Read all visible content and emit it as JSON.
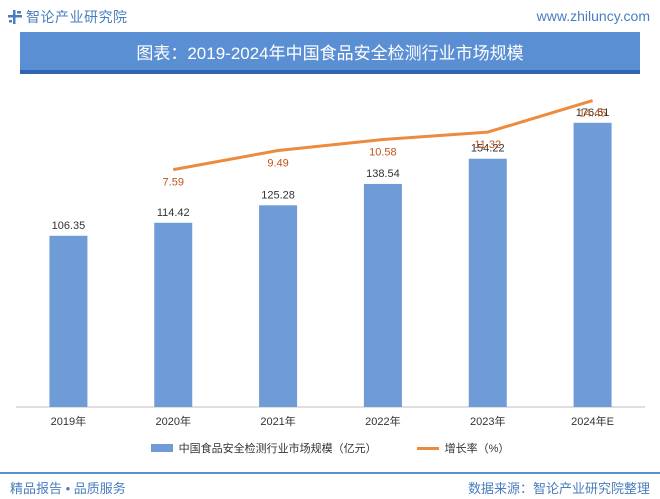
{
  "header": {
    "brand_name": "智论产业研究院",
    "website": "www.zhiluncy.com"
  },
  "footer": {
    "slogan": "精品报告 • 品质服务",
    "source": "数据来源：智论产业研究院整理"
  },
  "colors": {
    "bar": "#6f9bd6",
    "line": "#ec8a3e",
    "banner": "#5b8fd4",
    "brand": "#4a7dbf"
  },
  "chart_data": {
    "type": "bar",
    "title": "图表：2019-2024年中国食品安全检测行业市场规模",
    "categories": [
      "2019年",
      "2020年",
      "2021年",
      "2022年",
      "2023年",
      "2024年E"
    ],
    "series": [
      {
        "name": "中国食品安全检测行业市场规模（亿元）",
        "type": "bar",
        "values": [
          106.35,
          114.42,
          125.28,
          138.54,
          154.22,
          176.51
        ]
      },
      {
        "name": "增长率（%）",
        "type": "line",
        "values": [
          null,
          7.59,
          9.49,
          10.58,
          11.32,
          14.45
        ]
      }
    ],
    "bar_labels": [
      "106.35",
      "114.42",
      "125.28",
      "138.54",
      "154.22",
      "176.51"
    ],
    "line_labels": [
      "",
      "7.59",
      "9.49",
      "10.58",
      "11.32",
      "14.45"
    ],
    "ylim_bar": [
      0,
      200
    ],
    "ylim_line": [
      -16,
      16
    ],
    "grid": false,
    "legend_position": "bottom"
  }
}
